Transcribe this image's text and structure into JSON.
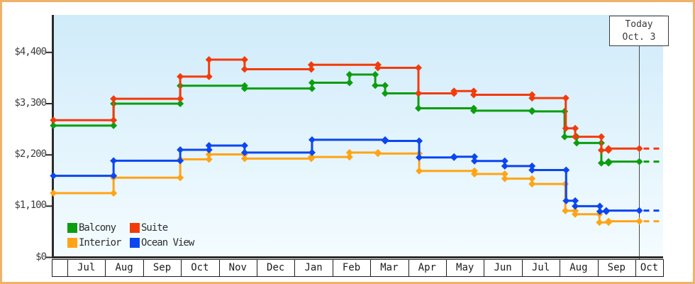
{
  "window": {
    "description": "Cruise cabin price history step chart"
  },
  "today_marker": {
    "line1": "Today",
    "line2": "Oct. 3"
  },
  "legend": {
    "items": [
      {
        "label": "Balcony",
        "color": "#0c9d10"
      },
      {
        "label": "Suite",
        "color": "#f23b0b"
      },
      {
        "label": "Interior",
        "color": "#ffa416"
      },
      {
        "label": "Ocean View",
        "color": "#0b46f0"
      }
    ]
  },
  "chart_data": {
    "type": "line",
    "subtype": "step",
    "title": "",
    "xlabel": "",
    "ylabel": "",
    "grid": false,
    "x_axis": {
      "month_labels": [
        "Jul",
        "Aug",
        "Sep",
        "Oct",
        "Nov",
        "Dec",
        "Jan",
        "Feb",
        "Mar",
        "Apr",
        "May",
        "Jun",
        "Jul",
        "Aug",
        "Sep",
        "Oct"
      ],
      "note_first_cell_empty": true
    },
    "y_axis": {
      "tick_values": [
        0,
        1100,
        2200,
        3300,
        4400
      ],
      "tick_labels": [
        "$0",
        "$1,100",
        "$2,200",
        "$3,300",
        "$4,400"
      ],
      "ylim": [
        0,
        4800
      ]
    },
    "today": {
      "label": "Oct. 3",
      "month_offset": 15.09
    },
    "projection_end_month_offset": 15.73,
    "series": [
      {
        "name": "Interior",
        "color": "#ffa416",
        "points": [
          [
            -0.37,
            1380
          ],
          [
            1.22,
            1710
          ],
          [
            2.98,
            2105
          ],
          [
            3.74,
            2210
          ],
          [
            4.68,
            2120
          ],
          [
            6.44,
            2155
          ],
          [
            7.45,
            2250
          ],
          [
            8.2,
            2230
          ],
          [
            9.29,
            1855
          ],
          [
            10.75,
            1790
          ],
          [
            11.55,
            1690
          ],
          [
            12.27,
            1575
          ],
          [
            13.15,
            1000
          ],
          [
            13.41,
            925
          ],
          [
            14.05,
            750
          ],
          [
            14.29,
            775
          ]
        ],
        "value_at_today": 775
      },
      {
        "name": "Ocean View",
        "color": "#0b46f0",
        "points": [
          [
            -0.37,
            1750
          ],
          [
            1.22,
            2075
          ],
          [
            2.98,
            2310
          ],
          [
            3.74,
            2400
          ],
          [
            4.68,
            2250
          ],
          [
            6.46,
            2525
          ],
          [
            8.39,
            2500
          ],
          [
            9.29,
            2145
          ],
          [
            10.21,
            2160
          ],
          [
            10.75,
            2070
          ],
          [
            11.55,
            1960
          ],
          [
            12.27,
            1875
          ],
          [
            13.17,
            1215
          ],
          [
            13.41,
            1100
          ],
          [
            14.06,
            985
          ],
          [
            14.23,
            1005
          ]
        ],
        "value_at_today": 1005
      },
      {
        "name": "Balcony",
        "color": "#0c9d10",
        "points": [
          [
            -0.37,
            2830
          ],
          [
            1.22,
            3300
          ],
          [
            2.98,
            3685
          ],
          [
            4.68,
            3625
          ],
          [
            6.46,
            3750
          ],
          [
            7.45,
            3925
          ],
          [
            8.13,
            3690
          ],
          [
            8.39,
            3520
          ],
          [
            9.27,
            3200
          ],
          [
            10.73,
            3150
          ],
          [
            12.27,
            3135
          ],
          [
            13.13,
            2590
          ],
          [
            13.45,
            2455
          ],
          [
            14.1,
            2025
          ],
          [
            14.29,
            2055
          ]
        ],
        "value_at_today": 2055
      },
      {
        "name": "Suite",
        "color": "#f23b0b",
        "points": [
          [
            -0.37,
            2945
          ],
          [
            1.22,
            3405
          ],
          [
            2.98,
            3880
          ],
          [
            3.74,
            4245
          ],
          [
            4.68,
            4040
          ],
          [
            6.44,
            4135
          ],
          [
            8.2,
            4070
          ],
          [
            9.27,
            3520
          ],
          [
            10.21,
            3570
          ],
          [
            10.73,
            3490
          ],
          [
            12.27,
            3420
          ],
          [
            13.16,
            2770
          ],
          [
            13.41,
            2590
          ],
          [
            14.1,
            2300
          ],
          [
            14.29,
            2335
          ]
        ],
        "value_at_today": 2335
      }
    ]
  }
}
